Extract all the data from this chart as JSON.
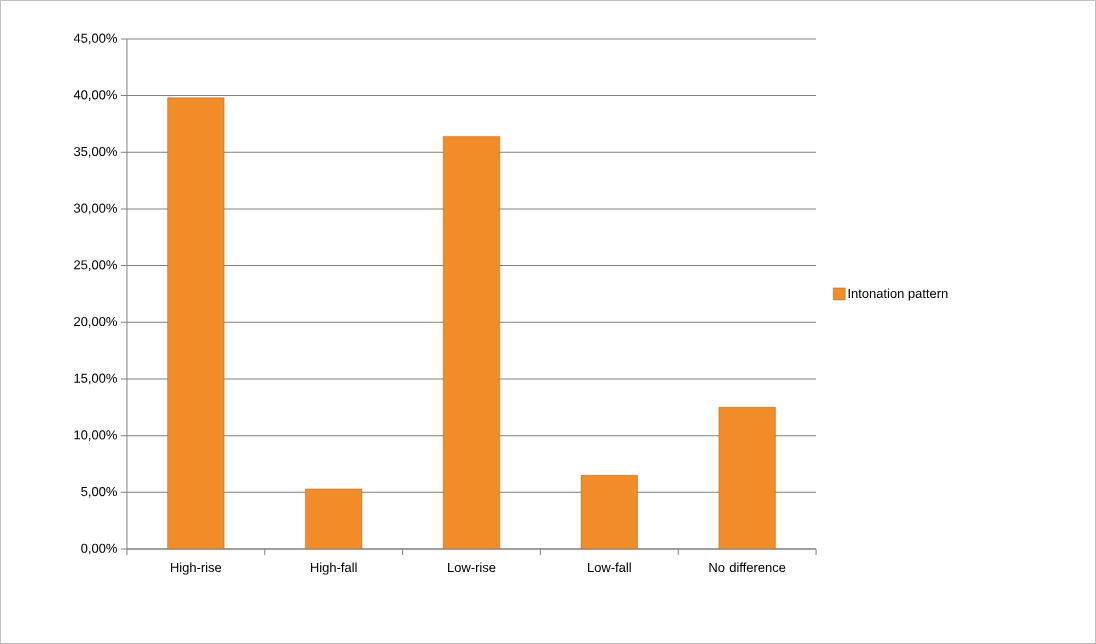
{
  "chart_data": {
    "type": "bar",
    "categories": [
      "High-rise",
      "High-fall",
      "Low-rise",
      "Low-fall",
      "No difference"
    ],
    "series": [
      {
        "name": "Intonation pattern",
        "color": "#f28c28",
        "values": [
          39.8,
          5.3,
          36.4,
          6.5,
          12.5
        ]
      }
    ],
    "ylim": [
      0,
      45
    ],
    "yticks": [
      {
        "value": 0,
        "label": "0,00%"
      },
      {
        "value": 5,
        "label": "5,00%"
      },
      {
        "value": 10,
        "label": "10,00%"
      },
      {
        "value": 15,
        "label": "15,00%"
      },
      {
        "value": 20,
        "label": "20,00%"
      },
      {
        "value": 25,
        "label": "25,00%"
      },
      {
        "value": 30,
        "label": "30,00%"
      },
      {
        "value": 35,
        "label": "35,00%"
      },
      {
        "value": 40,
        "label": "40,00%"
      },
      {
        "value": 45,
        "label": "45,00%"
      }
    ],
    "grid": "y",
    "legend": "right"
  }
}
